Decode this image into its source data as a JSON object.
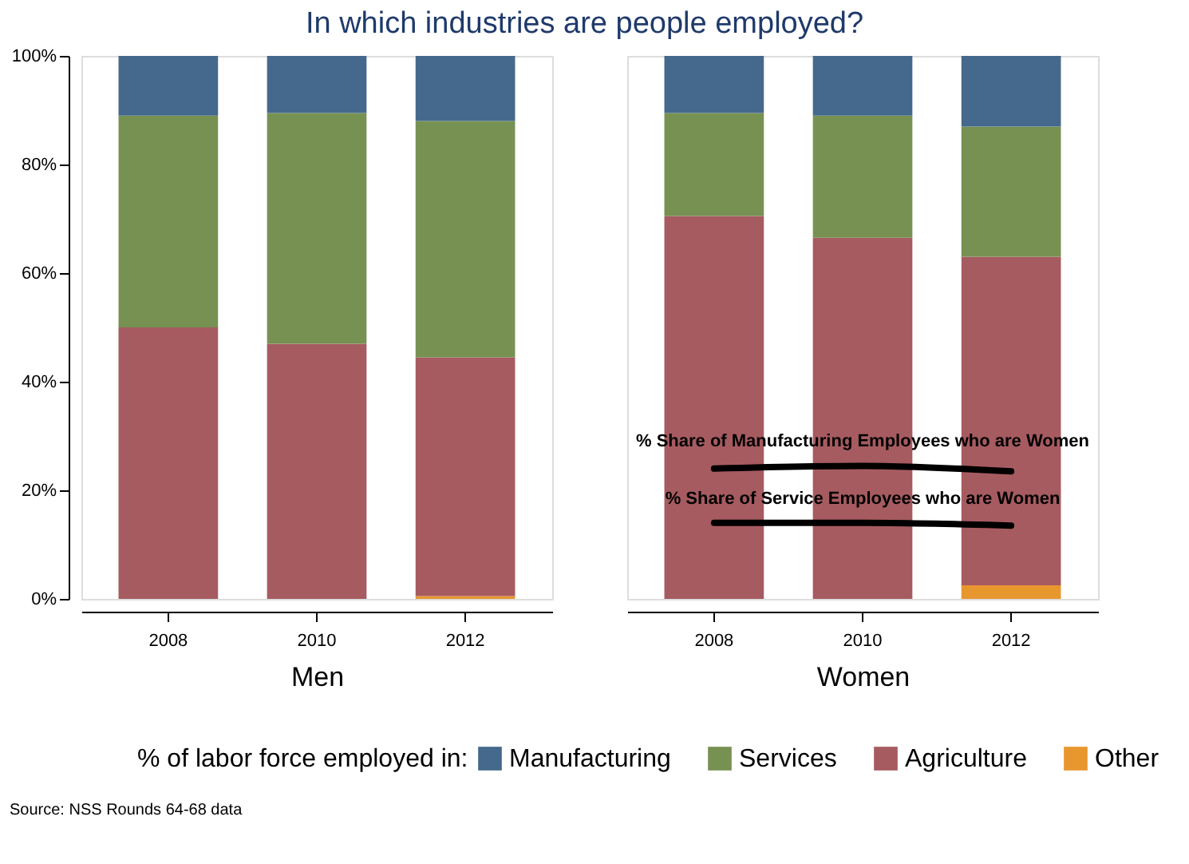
{
  "chart_data": [
    {
      "type": "bar",
      "stacked": true,
      "title": "In which industries are people employed?",
      "xlabel": "Men",
      "legend_title": "% of labor force employed in:",
      "legend": "bottom",
      "annotations": [
        "Source: NSS Rounds 64-68 data"
      ],
      "categories": [
        "2008",
        "2010",
        "2012"
      ],
      "ylim": [
        0,
        100
      ],
      "yticks": [
        {
          "value": 0,
          "label": "0%"
        },
        {
          "value": 20,
          "label": "20%"
        },
        {
          "value": 40,
          "label": "40%"
        },
        {
          "value": 60,
          "label": "60%"
        },
        {
          "value": 80,
          "label": "80%"
        },
        {
          "value": 100,
          "label": "100%"
        }
      ],
      "grid": false,
      "series": [
        {
          "name": "Other",
          "color": "#e8962e",
          "values": [
            null,
            null,
            0.5
          ]
        },
        {
          "name": "Agriculture",
          "color": "#a65b60",
          "values": [
            50,
            47,
            44
          ]
        },
        {
          "name": "Services",
          "color": "#779152",
          "values": [
            39,
            42.5,
            43.5
          ]
        },
        {
          "name": "Manufacturing",
          "color": "#45698c",
          "values": [
            11,
            10.5,
            12
          ]
        }
      ]
    },
    {
      "type": "bar",
      "stacked": true,
      "xlabel": "Women",
      "tick_labels": "x",
      "categories": [
        "2008",
        "2010",
        "2012"
      ],
      "ylim": [
        0,
        100
      ],
      "grid": false,
      "series": [
        {
          "name": "Other",
          "color": "#e8962e",
          "values": [
            null,
            null,
            2.5
          ]
        },
        {
          "name": "Agriculture",
          "color": "#a65b60",
          "values": [
            70.5,
            66.5,
            60.5
          ]
        },
        {
          "name": "Services",
          "color": "#779152",
          "values": [
            19,
            22.5,
            24
          ]
        },
        {
          "name": "Manufacturing",
          "color": "#45698c",
          "values": [
            10.5,
            11,
            13
          ]
        },
        {
          "name": "% Share of Manufacturing Employees who are Women",
          "type": "line",
          "color": "#000000",
          "values": [
            24,
            24.5,
            23.5
          ]
        },
        {
          "name": "% Share of Service Employees who are Women",
          "type": "line",
          "color": "#000000",
          "values": [
            14,
            14,
            13.5
          ]
        }
      ]
    }
  ]
}
